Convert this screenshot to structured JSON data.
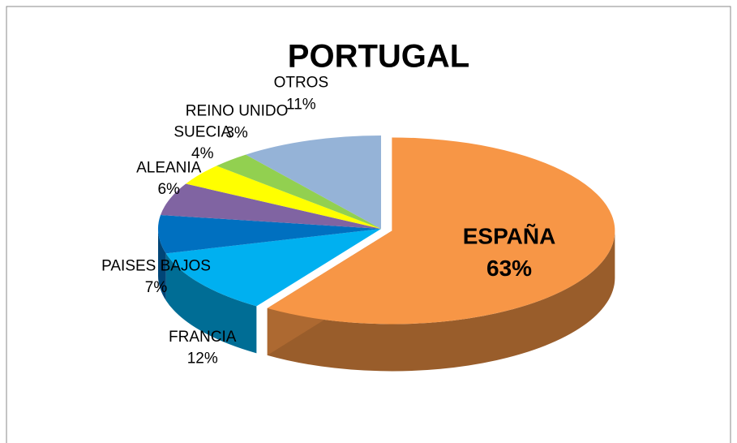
{
  "chart_data": {
    "type": "pie",
    "title": "PORTUGAL",
    "categories": [
      "ESPAÑA",
      "FRANCIA",
      "PAISES BAJOS",
      "ALEANIA",
      "SUECIA",
      "REINO UNIDO",
      "OTROS"
    ],
    "values": [
      63,
      12,
      7,
      6,
      4,
      3,
      11
    ],
    "value_labels": [
      "63%",
      "12%",
      "7%",
      "6%",
      "4%",
      "3%",
      "11%"
    ],
    "colors": [
      "#f79646",
      "#00b0f0",
      "#0070c0",
      "#8064a2",
      "#ffff00",
      "#92d050",
      "#95b3d7"
    ]
  }
}
